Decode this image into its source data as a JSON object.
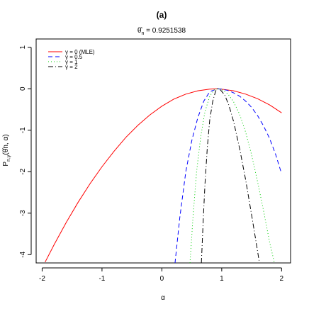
{
  "chart_data": {
    "type": "line",
    "title": "(a)",
    "subtitle_symbol": "θ̂",
    "subtitle_subscript": "n",
    "subtitle_value": " = 0.9251538",
    "xlabel": "α",
    "ylabel": "P",
    "ylabel_subscript": "n,γ",
    "ylabel_args": "(θ̂n, α)",
    "xlim": [
      -2.1,
      2.15
    ],
    "ylim": [
      -4.2,
      1.2
    ],
    "xticks": [
      -2,
      -1,
      0,
      1,
      2
    ],
    "xtick_labels": [
      "-2",
      "-1",
      "0",
      "1",
      "2"
    ],
    "yticks": [
      -4,
      -3,
      -2,
      -1,
      0,
      1
    ],
    "ytick_labels": [
      "-4",
      "-3",
      "-2",
      "-1",
      "0",
      "1"
    ],
    "grid": false,
    "legend_position": "top-left",
    "series": [
      {
        "name": "γ = 0 (MLE)",
        "color": "#ff0000",
        "dash": "",
        "x": [
          -1.95,
          -1.8,
          -1.6,
          -1.4,
          -1.2,
          -1.0,
          -0.8,
          -0.6,
          -0.4,
          -0.2,
          0.0,
          0.2,
          0.4,
          0.6,
          0.8,
          0.93,
          1.0,
          1.2,
          1.4,
          1.6,
          1.8,
          2.0
        ],
        "y": [
          -4.18,
          -3.76,
          -3.23,
          -2.74,
          -2.29,
          -1.88,
          -1.51,
          -1.17,
          -0.88,
          -0.63,
          -0.42,
          -0.25,
          -0.13,
          -0.05,
          -0.01,
          0.0,
          -0.01,
          -0.05,
          -0.13,
          -0.24,
          -0.39,
          -0.58
        ]
      },
      {
        "name": "γ = 0.5",
        "color": "#0000ff",
        "dash": "6,4",
        "x": [
          0.22,
          0.3,
          0.4,
          0.5,
          0.6,
          0.7,
          0.8,
          0.93,
          1.0,
          1.1,
          1.2,
          1.3,
          1.4,
          1.5,
          1.6,
          1.7,
          1.8,
          1.9,
          2.0
        ],
        "y": [
          -4.2,
          -3.1,
          -2.0,
          -1.25,
          -0.7,
          -0.3,
          -0.07,
          0.0,
          -0.01,
          -0.04,
          -0.1,
          -0.18,
          -0.3,
          -0.45,
          -0.65,
          -0.9,
          -1.2,
          -1.58,
          -2.05
        ]
      },
      {
        "name": "γ = 1",
        "color": "#00cc00",
        "dash": "1,3",
        "x": [
          0.47,
          0.52,
          0.58,
          0.65,
          0.72,
          0.8,
          0.87,
          0.93,
          1.0,
          1.1,
          1.2,
          1.3,
          1.4,
          1.5,
          1.6,
          1.7,
          1.8,
          1.88
        ],
        "y": [
          -4.2,
          -3.1,
          -2.0,
          -1.15,
          -0.55,
          -0.18,
          -0.03,
          0.0,
          -0.02,
          -0.12,
          -0.32,
          -0.62,
          -1.05,
          -1.6,
          -2.25,
          -2.95,
          -3.7,
          -4.2
        ]
      },
      {
        "name": "γ = 2",
        "color": "#000000",
        "dash": "7,3,1,3",
        "x": [
          0.66,
          0.69,
          0.72,
          0.76,
          0.8,
          0.85,
          0.9,
          0.93,
          0.98,
          1.05,
          1.12,
          1.2,
          1.3,
          1.4,
          1.5,
          1.58,
          1.63
        ],
        "y": [
          -4.2,
          -3.2,
          -2.3,
          -1.4,
          -0.75,
          -0.3,
          -0.05,
          0.0,
          -0.03,
          -0.15,
          -0.4,
          -0.8,
          -1.45,
          -2.2,
          -3.05,
          -3.75,
          -4.2
        ]
      }
    ]
  }
}
